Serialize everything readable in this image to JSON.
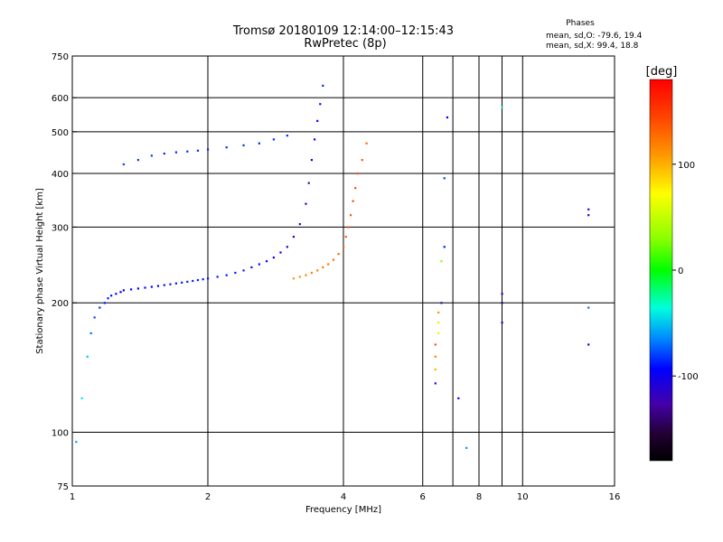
{
  "chart_data": {
    "type": "scatter",
    "title": "Tromsø 20180109 12:14:00–12:15:43",
    "subtitle": "RwPretec (8p)",
    "phases_header": "Phases",
    "phases_stats": [
      "mean, sd,O: -79.6, 19.4",
      "mean, sd,X:  99.4, 18.8"
    ],
    "xlabel": "Frequency [MHz]",
    "ylabel": "Stationary phase Virtual Height [km]",
    "x_scale": "log",
    "y_scale": "log",
    "xlim": [
      1,
      16
    ],
    "ylim": [
      75,
      750
    ],
    "x_ticks": [
      1,
      2,
      4,
      6,
      8,
      10,
      16
    ],
    "x_gridlines": [
      2,
      4,
      6,
      7,
      8,
      9,
      10
    ],
    "y_ticks": [
      75,
      100,
      200,
      300,
      400,
      500,
      600,
      750
    ],
    "y_gridlines": [
      100,
      200,
      300,
      400,
      500,
      600
    ],
    "grid": true,
    "colorbar": {
      "label": "[deg]",
      "range": [
        -180,
        180
      ],
      "ticks": [
        100,
        0,
        -100
      ],
      "placement": "right"
    },
    "series": [
      {
        "x": [
          1.02,
          1.05,
          1.08,
          1.1,
          1.12,
          1.15,
          1.18,
          1.2,
          1.22,
          1.25,
          1.28,
          1.3,
          1.35,
          1.4,
          1.45,
          1.5,
          1.55,
          1.6,
          1.65,
          1.7,
          1.75,
          1.8,
          1.85,
          1.9,
          1.95,
          2.0,
          2.1,
          2.2,
          2.3,
          2.4,
          2.5,
          2.6,
          2.7,
          2.8,
          2.9,
          3.0,
          3.1,
          3.2,
          3.3,
          3.35,
          3.4,
          3.45,
          3.5,
          3.55,
          3.6
        ],
        "y": [
          95,
          120,
          150,
          170,
          185,
          195,
          200,
          205,
          208,
          210,
          212,
          214,
          215,
          216,
          217,
          218,
          219,
          220,
          221,
          222,
          223,
          224,
          225,
          226,
          227,
          228,
          230,
          232,
          235,
          238,
          242,
          246,
          250,
          255,
          262,
          270,
          285,
          305,
          340,
          380,
          430,
          480,
          530,
          580,
          640
        ],
        "phase_deg": [
          -60,
          -40,
          -50,
          -70,
          -80,
          -85,
          -90,
          -90,
          -90,
          -92,
          -95,
          -95,
          -95,
          -95,
          -95,
          -95,
          -95,
          -90,
          -90,
          -88,
          -88,
          -88,
          -88,
          -88,
          -88,
          -88,
          -88,
          -88,
          -88,
          -88,
          -90,
          -92,
          -95,
          -100,
          -105,
          -110,
          -115,
          -120,
          -125,
          -120,
          -110,
          -100,
          -95,
          -90,
          -85
        ]
      },
      {
        "x": [
          1.3,
          1.4,
          1.5,
          1.6,
          1.7,
          1.8,
          1.9,
          2.0,
          2.2,
          2.4,
          2.6,
          2.8,
          3.0
        ],
        "y": [
          420,
          430,
          440,
          445,
          448,
          450,
          452,
          455,
          460,
          465,
          470,
          480,
          490
        ],
        "phase_deg": [
          -80,
          -80,
          -82,
          -85,
          -85,
          -85,
          -85,
          -85,
          -85,
          -85,
          -85,
          -85,
          -85
        ]
      },
      {
        "x": [
          3.1,
          3.2,
          3.3,
          3.4,
          3.5,
          3.6,
          3.7,
          3.8,
          3.9,
          4.0,
          4.05,
          4.1,
          4.15,
          4.2,
          4.25,
          4.3,
          4.4,
          4.5
        ],
        "y": [
          228,
          230,
          232,
          235,
          238,
          242,
          246,
          252,
          260,
          270,
          285,
          300,
          320,
          345,
          370,
          400,
          430,
          470
        ],
        "phase_deg": [
          110,
          112,
          115,
          118,
          120,
          122,
          124,
          126,
          128,
          130,
          132,
          135,
          138,
          140,
          140,
          138,
          135,
          130
        ]
      },
      {
        "x": [
          6.4,
          6.4,
          6.4,
          6.4,
          6.5,
          6.5,
          6.5,
          6.6,
          6.6,
          6.7,
          6.7,
          6.8,
          7.2,
          7.5,
          9.0,
          9.0,
          9.0,
          9.0,
          14.0,
          14.0,
          14.0,
          14.0
        ],
        "y": [
          130,
          140,
          150,
          160,
          170,
          180,
          190,
          200,
          250,
          270,
          390,
          540,
          120,
          92,
          180,
          200,
          210,
          570,
          320,
          330,
          160,
          195
        ],
        "phase_deg": [
          -120,
          100,
          120,
          140,
          60,
          80,
          110,
          -130,
          30,
          -90,
          -80,
          -95,
          -100,
          -60,
          -120,
          -140,
          -110,
          -40,
          -110,
          -120,
          -100,
          -70
        ]
      }
    ]
  }
}
